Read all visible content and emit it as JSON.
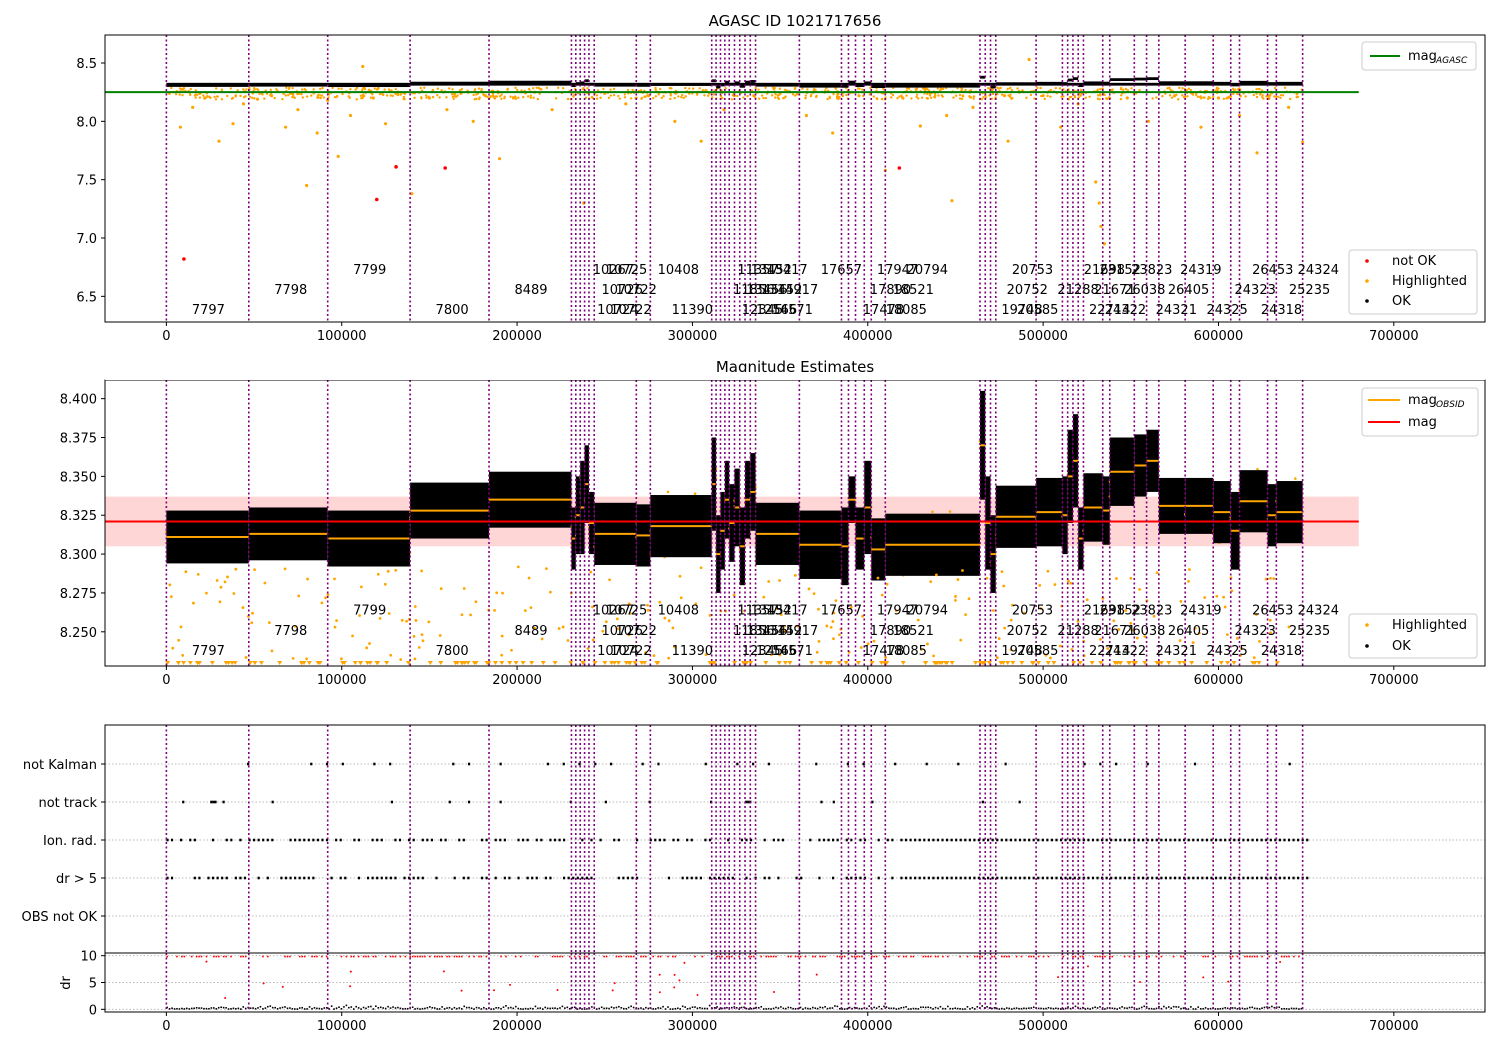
{
  "chart_data": [
    {
      "type": "scatter",
      "title": "AGASC ID 1021717656",
      "xlim": [
        -35000,
        752000
      ],
      "ylim": [
        6.28,
        8.74
      ],
      "xticks": [
        0,
        100000,
        200000,
        300000,
        400000,
        500000,
        600000,
        700000
      ],
      "yticks": [
        6.5,
        7.0,
        7.5,
        8.0,
        8.5
      ],
      "xtick_labels": [
        "0",
        "100000",
        "200000",
        "300000",
        "400000",
        "500000",
        "600000",
        "700000"
      ],
      "ytick_labels": [
        "6.5",
        "7.0",
        "7.5",
        "8.0",
        "8.5"
      ],
      "hline": {
        "name": "magAGASC",
        "y": 8.25,
        "x_range": [
          -35000,
          680000
        ],
        "color": "#008000"
      },
      "band": null,
      "ok_band": {
        "center": 8.318,
        "halfwidth": 0.012,
        "x_end": 648000
      },
      "highlighted_points": [
        [
          8000,
          7.95
        ],
        [
          15000,
          8.12
        ],
        [
          22000,
          8.2
        ],
        [
          30000,
          7.83
        ],
        [
          38000,
          7.98
        ],
        [
          44000,
          8.15
        ],
        [
          52000,
          8.19
        ],
        [
          60000,
          8.22
        ],
        [
          68000,
          7.95
        ],
        [
          75000,
          8.1
        ],
        [
          80000,
          7.45
        ],
        [
          86000,
          7.9
        ],
        [
          92000,
          8.18
        ],
        [
          98000,
          7.7
        ],
        [
          105000,
          8.05
        ],
        [
          112000,
          8.47
        ],
        [
          118000,
          8.2
        ],
        [
          125000,
          7.98
        ],
        [
          132000,
          8.23
        ],
        [
          140000,
          7.38
        ],
        [
          150000,
          8.2
        ],
        [
          160000,
          8.1
        ],
        [
          168000,
          8.24
        ],
        [
          175000,
          8.0
        ],
        [
          182000,
          8.22
        ],
        [
          190000,
          7.68
        ],
        [
          198000,
          8.2
        ],
        [
          210000,
          8.25
        ],
        [
          220000,
          8.1
        ],
        [
          238000,
          7.3
        ],
        [
          250000,
          8.24
        ],
        [
          262000,
          8.15
        ],
        [
          275000,
          8.22
        ],
        [
          290000,
          8.0
        ],
        [
          305000,
          7.83
        ],
        [
          318000,
          8.1
        ],
        [
          335000,
          8.22
        ],
        [
          350000,
          8.24
        ],
        [
          365000,
          8.05
        ],
        [
          380000,
          7.9
        ],
        [
          395000,
          8.22
        ],
        [
          410000,
          7.58
        ],
        [
          420000,
          8.2
        ],
        [
          430000,
          7.96
        ],
        [
          445000,
          8.05
        ],
        [
          448000,
          7.32
        ],
        [
          460000,
          8.12
        ],
        [
          478000,
          8.22
        ],
        [
          480000,
          7.83
        ],
        [
          492000,
          8.53
        ],
        [
          500000,
          8.22
        ],
        [
          510000,
          7.95
        ],
        [
          520000,
          8.15
        ],
        [
          530000,
          7.48
        ],
        [
          532000,
          7.3
        ],
        [
          533000,
          7.1
        ],
        [
          535000,
          6.95
        ],
        [
          548000,
          8.2
        ],
        [
          560000,
          8.0
        ],
        [
          575000,
          8.22
        ],
        [
          590000,
          7.95
        ],
        [
          600000,
          8.2
        ],
        [
          612000,
          8.05
        ],
        [
          622000,
          7.73
        ],
        [
          630000,
          8.25
        ],
        [
          640000,
          8.12
        ],
        [
          648000,
          7.82
        ]
      ],
      "not_ok_points": [
        [
          10000,
          6.82
        ],
        [
          120000,
          7.33
        ],
        [
          131000,
          7.61
        ],
        [
          159000,
          7.6
        ],
        [
          418000,
          7.6
        ]
      ],
      "legend": [
        {
          "label": "not OK",
          "color": "#ff0000"
        },
        {
          "label": "Highlighted",
          "color": "#ffa500"
        },
        {
          "label": "OK",
          "color": "#000000"
        }
      ],
      "line_legend": [
        {
          "label": "mag",
          "sub": "AGASC",
          "color": "#008000"
        }
      ],
      "obs_label_y": [
        6.35,
        6.52,
        6.69
      ]
    },
    {
      "type": "scatter",
      "title": "Magnitude Estimates",
      "xlim": [
        -35000,
        752000
      ],
      "ylim": [
        8.228,
        8.412
      ],
      "xticks": [
        0,
        100000,
        200000,
        300000,
        400000,
        500000,
        600000,
        700000
      ],
      "yticks": [
        8.25,
        8.275,
        8.3,
        8.325,
        8.35,
        8.375,
        8.4
      ],
      "xtick_labels": [
        "0",
        "100000",
        "200000",
        "300000",
        "400000",
        "500000",
        "600000",
        "700000"
      ],
      "ytick_labels": [
        "8.250",
        "8.275",
        "8.300",
        "8.325",
        "8.350",
        "8.375",
        "8.400"
      ],
      "hline": {
        "name": "mag",
        "y": 8.321,
        "x_range": [
          -35000,
          680000
        ],
        "color": "#ff0000"
      },
      "band": {
        "low": 8.305,
        "high": 8.337,
        "x_range": [
          -35000,
          680000
        ]
      },
      "legend": [
        {
          "label": "Highlighted",
          "color": "#ffa500"
        },
        {
          "label": "OK",
          "color": "#000000"
        }
      ],
      "line_legend": [
        {
          "label": "mag",
          "sub": "OBSID",
          "color": "#ffa500"
        },
        {
          "label": "mag",
          "sub": "",
          "color": "#ff0000"
        }
      ],
      "obs_label_y": [
        8.235,
        8.248,
        8.261
      ]
    },
    {
      "type": "scatter",
      "title": "",
      "xlim": [
        -35000,
        752000
      ],
      "categories": [
        "not Kalman",
        "not track",
        "Ion. rad.",
        "dr > 5",
        "OBS not OK"
      ],
      "flags": {
        "not Kalman": [
          [
            46000,
            650000
          ]
        ],
        "not track": [
          [
            9000,
            10000
          ],
          [
            25000,
            28000
          ],
          [
            32000,
            33000
          ],
          [
            60000,
            61000
          ],
          [
            128000,
            129000
          ],
          [
            161000,
            162000
          ],
          [
            172000,
            173000
          ],
          [
            190000,
            191000
          ],
          [
            230000,
            231000
          ],
          [
            250000,
            251000
          ],
          [
            275000,
            276000
          ],
          [
            310000,
            311000
          ],
          [
            330000,
            333000
          ],
          [
            373000,
            374000
          ],
          [
            380000,
            381000
          ],
          [
            402000,
            403000
          ],
          [
            465000,
            466000
          ],
          [
            486000,
            487000
          ]
        ],
        "Ion. rad.": [
          [
            0,
            650000
          ]
        ],
        "dr > 5": [
          [
            0,
            650000
          ]
        ]
      },
      "dr_panel": {
        "ylabel": "dr",
        "ylim": [
          -0.5,
          10.5
        ],
        "yticks": [
          0,
          5,
          10
        ],
        "ytick_labels": [
          "0",
          "5",
          "10"
        ]
      }
    }
  ],
  "obsids": [
    {
      "x": 0,
      "label": "7797"
    },
    {
      "x": 47000,
      "label": "7798"
    },
    {
      "x": 92000,
      "label": "7799"
    },
    {
      "x": 139000,
      "label": "7800"
    },
    {
      "x": 184000,
      "label": "8489"
    },
    {
      "x": 231000,
      "label": "10267"
    },
    {
      "x": 233500,
      "label": "10724"
    },
    {
      "x": 236000,
      "label": "10726"
    },
    {
      "x": 238500,
      "label": "10725"
    },
    {
      "x": 241000,
      "label": "10722"
    },
    {
      "x": 244000,
      "label": "10722"
    },
    {
      "x": 268000,
      "label": "10408"
    },
    {
      "x": 276000,
      "label": "11390"
    },
    {
      "x": 311000,
      "label": "11856"
    },
    {
      "x": 313500,
      "label": "11357"
    },
    {
      "x": 316000,
      "label": "12345"
    },
    {
      "x": 318500,
      "label": "13456"
    },
    {
      "x": 321000,
      "label": "13452"
    },
    {
      "x": 324000,
      "label": "12566"
    },
    {
      "x": 327000,
      "label": "13452"
    },
    {
      "x": 330000,
      "label": "13417"
    },
    {
      "x": 333000,
      "label": "14571"
    },
    {
      "x": 336000,
      "label": "14917"
    },
    {
      "x": 361000,
      "label": "17657"
    },
    {
      "x": 385000,
      "label": "17478"
    },
    {
      "x": 389000,
      "label": "17890"
    },
    {
      "x": 393000,
      "label": "17947"
    },
    {
      "x": 398000,
      "label": "18085"
    },
    {
      "x": 402000,
      "label": "18521"
    },
    {
      "x": 410000,
      "label": "20794"
    },
    {
      "x": 464000,
      "label": "19748"
    },
    {
      "x": 467000,
      "label": "20752"
    },
    {
      "x": 470000,
      "label": "20753"
    },
    {
      "x": 473000,
      "label": "20585"
    },
    {
      "x": 496000,
      "label": "21288"
    },
    {
      "x": 511000,
      "label": "21698"
    },
    {
      "x": 514000,
      "label": "22714"
    },
    {
      "x": 517000,
      "label": "21671"
    },
    {
      "x": 520000,
      "label": "23152"
    },
    {
      "x": 523000,
      "label": "24322"
    },
    {
      "x": 534000,
      "label": "26038"
    },
    {
      "x": 538000,
      "label": "23823"
    },
    {
      "x": 552000,
      "label": "24321"
    },
    {
      "x": 559000,
      "label": "26405"
    },
    {
      "x": 566000,
      "label": "24319"
    },
    {
      "x": 581000,
      "label": "24325"
    },
    {
      "x": 597000,
      "label": "24323"
    },
    {
      "x": 607000,
      "label": "26453"
    },
    {
      "x": 612000,
      "label": "24318"
    },
    {
      "x": 628000,
      "label": "25235"
    },
    {
      "x": 633000,
      "label": "24324"
    },
    {
      "x": 648000,
      "label": ""
    }
  ],
  "segments": [
    {
      "x0": 0,
      "x1": 47000,
      "mag": 8.311,
      "spread": 0.017
    },
    {
      "x0": 47000,
      "x1": 92000,
      "mag": 8.313,
      "spread": 0.017
    },
    {
      "x0": 92000,
      "x1": 139000,
      "mag": 8.31,
      "spread": 0.018
    },
    {
      "x0": 139000,
      "x1": 184000,
      "mag": 8.328,
      "spread": 0.018
    },
    {
      "x0": 184000,
      "x1": 231000,
      "mag": 8.335,
      "spread": 0.018
    },
    {
      "x0": 231000,
      "x1": 233500,
      "mag": 8.31,
      "spread": 0.02
    },
    {
      "x0": 233500,
      "x1": 236000,
      "mag": 8.325,
      "spread": 0.025
    },
    {
      "x0": 236000,
      "x1": 238500,
      "mag": 8.33,
      "spread": 0.03
    },
    {
      "x0": 238500,
      "x1": 241000,
      "mag": 8.345,
      "spread": 0.025
    },
    {
      "x0": 241000,
      "x1": 244000,
      "mag": 8.32,
      "spread": 0.02
    },
    {
      "x0": 244000,
      "x1": 268000,
      "mag": 8.313,
      "spread": 0.02
    },
    {
      "x0": 268000,
      "x1": 276000,
      "mag": 8.312,
      "spread": 0.02
    },
    {
      "x0": 276000,
      "x1": 311000,
      "mag": 8.318,
      "spread": 0.02
    },
    {
      "x0": 311000,
      "x1": 313500,
      "mag": 8.345,
      "spread": 0.03
    },
    {
      "x0": 313500,
      "x1": 316000,
      "mag": 8.3,
      "spread": 0.025
    },
    {
      "x0": 316000,
      "x1": 318500,
      "mag": 8.315,
      "spread": 0.025
    },
    {
      "x0": 318500,
      "x1": 321000,
      "mag": 8.335,
      "spread": 0.025
    },
    {
      "x0": 321000,
      "x1": 324000,
      "mag": 8.32,
      "spread": 0.025
    },
    {
      "x0": 324000,
      "x1": 327000,
      "mag": 8.33,
      "spread": 0.025
    },
    {
      "x0": 327000,
      "x1": 330000,
      "mag": 8.305,
      "spread": 0.025
    },
    {
      "x0": 330000,
      "x1": 333000,
      "mag": 8.335,
      "spread": 0.025
    },
    {
      "x0": 333000,
      "x1": 336000,
      "mag": 8.34,
      "spread": 0.025
    },
    {
      "x0": 336000,
      "x1": 361000,
      "mag": 8.313,
      "spread": 0.02
    },
    {
      "x0": 361000,
      "x1": 385000,
      "mag": 8.306,
      "spread": 0.022
    },
    {
      "x0": 385000,
      "x1": 389000,
      "mag": 8.305,
      "spread": 0.025
    },
    {
      "x0": 389000,
      "x1": 393000,
      "mag": 8.335,
      "spread": 0.015
    },
    {
      "x0": 393000,
      "x1": 398000,
      "mag": 8.31,
      "spread": 0.02
    },
    {
      "x0": 398000,
      "x1": 402000,
      "mag": 8.33,
      "spread": 0.03
    },
    {
      "x0": 402000,
      "x1": 410000,
      "mag": 8.303,
      "spread": 0.02
    },
    {
      "x0": 410000,
      "x1": 464000,
      "mag": 8.306,
      "spread": 0.02
    },
    {
      "x0": 464000,
      "x1": 467000,
      "mag": 8.37,
      "spread": 0.035
    },
    {
      "x0": 467000,
      "x1": 470000,
      "mag": 8.32,
      "spread": 0.03
    },
    {
      "x0": 470000,
      "x1": 473000,
      "mag": 8.3,
      "spread": 0.025
    },
    {
      "x0": 473000,
      "x1": 496000,
      "mag": 8.324,
      "spread": 0.02
    },
    {
      "x0": 496000,
      "x1": 511000,
      "mag": 8.327,
      "spread": 0.022
    },
    {
      "x0": 511000,
      "x1": 514000,
      "mag": 8.325,
      "spread": 0.025
    },
    {
      "x0": 514000,
      "x1": 517000,
      "mag": 8.35,
      "spread": 0.03
    },
    {
      "x0": 517000,
      "x1": 520000,
      "mag": 8.36,
      "spread": 0.03
    },
    {
      "x0": 520000,
      "x1": 523000,
      "mag": 8.31,
      "spread": 0.02
    },
    {
      "x0": 523000,
      "x1": 534000,
      "mag": 8.33,
      "spread": 0.022
    },
    {
      "x0": 534000,
      "x1": 538000,
      "mag": 8.328,
      "spread": 0.022
    },
    {
      "x0": 538000,
      "x1": 552000,
      "mag": 8.353,
      "spread": 0.022
    },
    {
      "x0": 552000,
      "x1": 559000,
      "mag": 8.357,
      "spread": 0.02
    },
    {
      "x0": 559000,
      "x1": 566000,
      "mag": 8.36,
      "spread": 0.02
    },
    {
      "x0": 566000,
      "x1": 581000,
      "mag": 8.331,
      "spread": 0.018
    },
    {
      "x0": 581000,
      "x1": 597000,
      "mag": 8.331,
      "spread": 0.018
    },
    {
      "x0": 597000,
      "x1": 607000,
      "mag": 8.327,
      "spread": 0.02
    },
    {
      "x0": 607000,
      "x1": 612000,
      "mag": 8.315,
      "spread": 0.025
    },
    {
      "x0": 612000,
      "x1": 628000,
      "mag": 8.334,
      "spread": 0.02
    },
    {
      "x0": 628000,
      "x1": 633000,
      "mag": 8.325,
      "spread": 0.02
    },
    {
      "x0": 633000,
      "x1": 648000,
      "mag": 8.327,
      "spread": 0.02
    }
  ],
  "colors": {
    "ok": "#000000",
    "highlighted": "#ffa500",
    "not_ok": "#ff0000",
    "agasc": "#008000",
    "obs_vline": "#800080",
    "band": "#ffcccc"
  }
}
